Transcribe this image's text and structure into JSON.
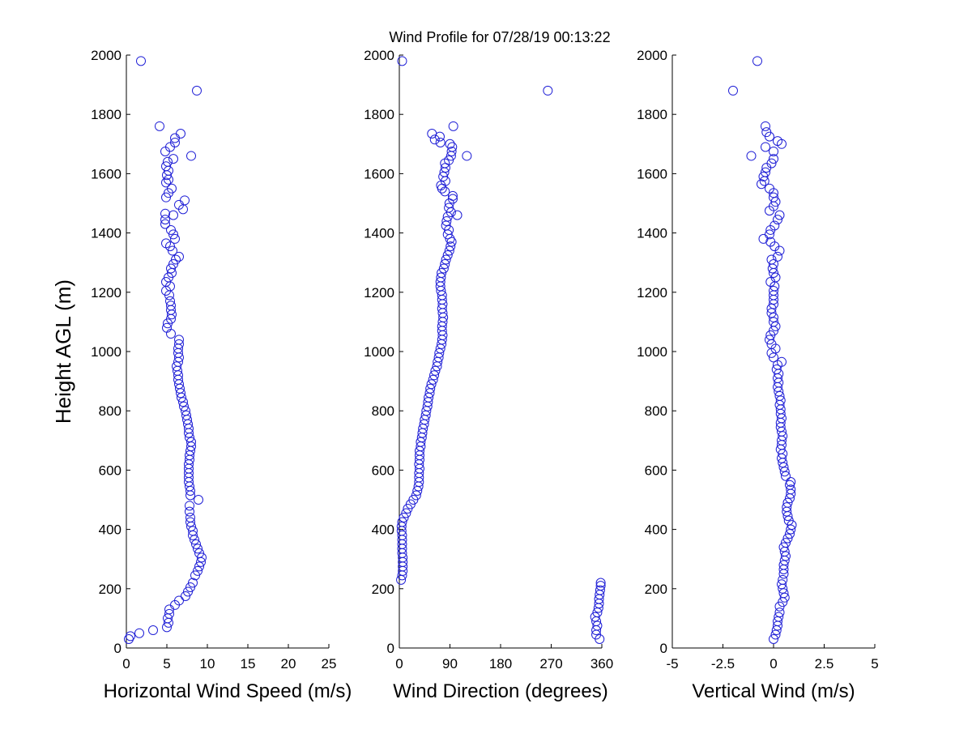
{
  "title": "Wind Profile for  07/28/19 00:13:22",
  "colors": {
    "marker": "#1f1fd6",
    "axis": "#000000",
    "background": "#ffffff"
  },
  "chart_data": [
    {
      "type": "scatter",
      "xlabel": "Horizontal Wind Speed (m/s)",
      "ylabel": "Height AGL (m)",
      "xlim": [
        0,
        25
      ],
      "ylim": [
        0,
        2000
      ],
      "xticks": [
        "0",
        "5",
        "10",
        "15",
        "20",
        "25"
      ],
      "yticks": [
        "0",
        "200",
        "400",
        "600",
        "800",
        "1000",
        "1200",
        "1400",
        "1600",
        "1800",
        "2000"
      ],
      "grid": false,
      "points": [
        [
          0.3,
          30
        ],
        [
          0.5,
          40
        ],
        [
          1.6,
          50
        ],
        [
          3.3,
          60
        ],
        [
          5.0,
          70
        ],
        [
          5.2,
          85
        ],
        [
          5.1,
          100
        ],
        [
          5.3,
          115
        ],
        [
          5.3,
          130
        ],
        [
          6.0,
          145
        ],
        [
          6.5,
          160
        ],
        [
          7.3,
          175
        ],
        [
          7.6,
          190
        ],
        [
          7.9,
          205
        ],
        [
          8.2,
          220
        ],
        [
          8.5,
          245
        ],
        [
          8.8,
          260
        ],
        [
          9.0,
          275
        ],
        [
          9.2,
          290
        ],
        [
          9.3,
          305
        ],
        [
          9.0,
          320
        ],
        [
          8.8,
          335
        ],
        [
          8.6,
          350
        ],
        [
          8.4,
          365
        ],
        [
          8.2,
          380
        ],
        [
          8.2,
          395
        ],
        [
          8.0,
          410
        ],
        [
          7.9,
          425
        ],
        [
          7.9,
          440
        ],
        [
          7.8,
          460
        ],
        [
          7.8,
          480
        ],
        [
          8.9,
          500
        ],
        [
          7.9,
          515
        ],
        [
          7.9,
          530
        ],
        [
          7.8,
          545
        ],
        [
          7.7,
          560
        ],
        [
          7.7,
          575
        ],
        [
          7.7,
          590
        ],
        [
          7.7,
          605
        ],
        [
          7.7,
          620
        ],
        [
          7.8,
          635
        ],
        [
          7.8,
          650
        ],
        [
          7.9,
          665
        ],
        [
          8.0,
          680
        ],
        [
          8.0,
          695
        ],
        [
          7.8,
          710
        ],
        [
          7.7,
          725
        ],
        [
          7.7,
          740
        ],
        [
          7.6,
          755
        ],
        [
          7.5,
          770
        ],
        [
          7.4,
          785
        ],
        [
          7.3,
          800
        ],
        [
          7.1,
          815
        ],
        [
          7.0,
          830
        ],
        [
          6.8,
          845
        ],
        [
          6.7,
          860
        ],
        [
          6.6,
          875
        ],
        [
          6.5,
          890
        ],
        [
          6.4,
          905
        ],
        [
          6.4,
          920
        ],
        [
          6.3,
          935
        ],
        [
          6.2,
          950
        ],
        [
          6.4,
          965
        ],
        [
          6.5,
          980
        ],
        [
          6.4,
          995
        ],
        [
          6.4,
          1010
        ],
        [
          6.5,
          1025
        ],
        [
          6.5,
          1040
        ],
        [
          5.5,
          1060
        ],
        [
          5.0,
          1080
        ],
        [
          5.1,
          1095
        ],
        [
          5.5,
          1110
        ],
        [
          5.6,
          1125
        ],
        [
          5.5,
          1140
        ],
        [
          5.5,
          1155
        ],
        [
          5.4,
          1170
        ],
        [
          5.3,
          1190
        ],
        [
          4.9,
          1205
        ],
        [
          5.4,
          1220
        ],
        [
          4.9,
          1235
        ],
        [
          5.2,
          1250
        ],
        [
          5.6,
          1265
        ],
        [
          5.5,
          1280
        ],
        [
          5.8,
          1295
        ],
        [
          6.1,
          1310
        ],
        [
          6.5,
          1320
        ],
        [
          5.7,
          1340
        ],
        [
          5.4,
          1355
        ],
        [
          4.9,
          1365
        ],
        [
          6.0,
          1380
        ],
        [
          5.8,
          1395
        ],
        [
          5.5,
          1410
        ],
        [
          4.8,
          1430
        ],
        [
          4.8,
          1445
        ],
        [
          5.8,
          1460
        ],
        [
          4.8,
          1465
        ],
        [
          7.0,
          1480
        ],
        [
          6.5,
          1495
        ],
        [
          7.2,
          1510
        ],
        [
          4.9,
          1520
        ],
        [
          5.2,
          1535
        ],
        [
          5.6,
          1550
        ],
        [
          4.9,
          1570
        ],
        [
          5.2,
          1580
        ],
        [
          5.0,
          1595
        ],
        [
          5.2,
          1610
        ],
        [
          4.9,
          1625
        ],
        [
          5.1,
          1640
        ],
        [
          5.8,
          1650
        ],
        [
          8.0,
          1660
        ],
        [
          4.8,
          1675
        ],
        [
          5.4,
          1690
        ],
        [
          6.0,
          1705
        ],
        [
          6.0,
          1720
        ],
        [
          6.7,
          1735
        ],
        [
          4.1,
          1760
        ],
        [
          8.7,
          1880
        ],
        [
          1.8,
          1980
        ]
      ]
    },
    {
      "type": "scatter",
      "xlabel": "Wind Direction (degrees)",
      "xlim": [
        0,
        360
      ],
      "ylim": [
        0,
        2000
      ],
      "xticks": [
        "0",
        "90",
        "180",
        "270",
        "360"
      ],
      "yticks": [
        "0",
        "200",
        "400",
        "600",
        "800",
        "1000",
        "1200",
        "1400",
        "1600",
        "1800",
        "2000"
      ],
      "grid": false,
      "points": [
        [
          356,
          30
        ],
        [
          350,
          45
        ],
        [
          350,
          60
        ],
        [
          352,
          75
        ],
        [
          350,
          90
        ],
        [
          348,
          105
        ],
        [
          352,
          120
        ],
        [
          354,
          135
        ],
        [
          355,
          150
        ],
        [
          355,
          165
        ],
        [
          356,
          180
        ],
        [
          357,
          195
        ],
        [
          358,
          210
        ],
        [
          358,
          220
        ],
        [
          3,
          230
        ],
        [
          5,
          245
        ],
        [
          6,
          260
        ],
        [
          6,
          275
        ],
        [
          6,
          290
        ],
        [
          6,
          305
        ],
        [
          5,
          320
        ],
        [
          5,
          335
        ],
        [
          5,
          350
        ],
        [
          5,
          365
        ],
        [
          5,
          380
        ],
        [
          4,
          395
        ],
        [
          4,
          410
        ],
        [
          5,
          425
        ],
        [
          8,
          440
        ],
        [
          12,
          455
        ],
        [
          15,
          470
        ],
        [
          20,
          485
        ],
        [
          25,
          500
        ],
        [
          30,
          515
        ],
        [
          32,
          530
        ],
        [
          34,
          545
        ],
        [
          35,
          560
        ],
        [
          35,
          575
        ],
        [
          35,
          590
        ],
        [
          36,
          605
        ],
        [
          35,
          620
        ],
        [
          36,
          635
        ],
        [
          36,
          650
        ],
        [
          36,
          665
        ],
        [
          38,
          680
        ],
        [
          38,
          695
        ],
        [
          40,
          710
        ],
        [
          41,
          725
        ],
        [
          42,
          740
        ],
        [
          44,
          755
        ],
        [
          45,
          770
        ],
        [
          47,
          785
        ],
        [
          48,
          800
        ],
        [
          50,
          815
        ],
        [
          51,
          830
        ],
        [
          52,
          845
        ],
        [
          54,
          860
        ],
        [
          55,
          875
        ],
        [
          57,
          890
        ],
        [
          60,
          905
        ],
        [
          62,
          920
        ],
        [
          64,
          935
        ],
        [
          67,
          950
        ],
        [
          68,
          965
        ],
        [
          70,
          980
        ],
        [
          71,
          995
        ],
        [
          73,
          1010
        ],
        [
          75,
          1025
        ],
        [
          76,
          1040
        ],
        [
          77,
          1055
        ],
        [
          76,
          1070
        ],
        [
          76,
          1085
        ],
        [
          77,
          1100
        ],
        [
          78,
          1115
        ],
        [
          77,
          1130
        ],
        [
          76,
          1145
        ],
        [
          77,
          1160
        ],
        [
          76,
          1175
        ],
        [
          76,
          1190
        ],
        [
          74,
          1205
        ],
        [
          73,
          1220
        ],
        [
          73,
          1235
        ],
        [
          74,
          1250
        ],
        [
          75,
          1265
        ],
        [
          79,
          1280
        ],
        [
          81,
          1295
        ],
        [
          83,
          1310
        ],
        [
          86,
          1325
        ],
        [
          89,
          1340
        ],
        [
          91,
          1355
        ],
        [
          93,
          1370
        ],
        [
          90,
          1380
        ],
        [
          86,
          1395
        ],
        [
          88,
          1410
        ],
        [
          83,
          1425
        ],
        [
          84,
          1440
        ],
        [
          86,
          1455
        ],
        [
          92,
          1470
        ],
        [
          103,
          1460
        ],
        [
          88,
          1485
        ],
        [
          89,
          1500
        ],
        [
          95,
          1515
        ],
        [
          95,
          1525
        ],
        [
          81,
          1540
        ],
        [
          76,
          1550
        ],
        [
          74,
          1560
        ],
        [
          82,
          1575
        ],
        [
          78,
          1590
        ],
        [
          80,
          1605
        ],
        [
          82,
          1620
        ],
        [
          81,
          1635
        ],
        [
          88,
          1645
        ],
        [
          92,
          1660
        ],
        [
          120,
          1660
        ],
        [
          93,
          1675
        ],
        [
          94,
          1690
        ],
        [
          90,
          1700
        ],
        [
          73,
          1705
        ],
        [
          63,
          1715
        ],
        [
          72,
          1725
        ],
        [
          58,
          1735
        ],
        [
          96,
          1760
        ],
        [
          264,
          1880
        ],
        [
          5,
          1980
        ]
      ]
    },
    {
      "type": "scatter",
      "xlabel": "Vertical Wind (m/s)",
      "xlim": [
        -5,
        5
      ],
      "ylim": [
        0,
        2000
      ],
      "xticks": [
        "-5",
        "-2.5",
        "0",
        "2.5",
        "5"
      ],
      "yticks": [
        "0",
        "200",
        "400",
        "600",
        "800",
        "1000",
        "1200",
        "1400",
        "1600",
        "1800",
        "2000"
      ],
      "grid": false,
      "points": [
        [
          0.0,
          30
        ],
        [
          0.1,
          45
        ],
        [
          0.15,
          60
        ],
        [
          0.2,
          75
        ],
        [
          0.2,
          90
        ],
        [
          0.25,
          105
        ],
        [
          0.3,
          120
        ],
        [
          0.3,
          140
        ],
        [
          0.45,
          155
        ],
        [
          0.55,
          170
        ],
        [
          0.5,
          185
        ],
        [
          0.45,
          200
        ],
        [
          0.4,
          215
        ],
        [
          0.45,
          230
        ],
        [
          0.5,
          250
        ],
        [
          0.5,
          265
        ],
        [
          0.5,
          280
        ],
        [
          0.55,
          295
        ],
        [
          0.6,
          310
        ],
        [
          0.55,
          325
        ],
        [
          0.5,
          340
        ],
        [
          0.6,
          355
        ],
        [
          0.7,
          370
        ],
        [
          0.8,
          385
        ],
        [
          0.85,
          400
        ],
        [
          0.9,
          415
        ],
        [
          0.75,
          430
        ],
        [
          0.7,
          445
        ],
        [
          0.65,
          460
        ],
        [
          0.65,
          475
        ],
        [
          0.7,
          490
        ],
        [
          0.8,
          505
        ],
        [
          0.85,
          520
        ],
        [
          0.85,
          535
        ],
        [
          0.8,
          550
        ],
        [
          0.85,
          560
        ],
        [
          0.6,
          580
        ],
        [
          0.55,
          595
        ],
        [
          0.5,
          610
        ],
        [
          0.45,
          625
        ],
        [
          0.4,
          640
        ],
        [
          0.45,
          655
        ],
        [
          0.35,
          670
        ],
        [
          0.4,
          685
        ],
        [
          0.4,
          700
        ],
        [
          0.45,
          715
        ],
        [
          0.4,
          730
        ],
        [
          0.35,
          745
        ],
        [
          0.35,
          760
        ],
        [
          0.4,
          775
        ],
        [
          0.35,
          790
        ],
        [
          0.35,
          805
        ],
        [
          0.3,
          820
        ],
        [
          0.35,
          835
        ],
        [
          0.3,
          850
        ],
        [
          0.25,
          865
        ],
        [
          0.2,
          880
        ],
        [
          0.25,
          895
        ],
        [
          0.2,
          910
        ],
        [
          0.25,
          925
        ],
        [
          0.15,
          940
        ],
        [
          0.2,
          955
        ],
        [
          0.4,
          965
        ],
        [
          0.0,
          980
        ],
        [
          -0.1,
          995
        ],
        [
          0.1,
          1010
        ],
        [
          -0.1,
          1025
        ],
        [
          -0.2,
          1040
        ],
        [
          -0.15,
          1055
        ],
        [
          0.0,
          1070
        ],
        [
          0.1,
          1085
        ],
        [
          0.0,
          1100
        ],
        [
          0.0,
          1115
        ],
        [
          -0.1,
          1130
        ],
        [
          -0.1,
          1145
        ],
        [
          0.0,
          1160
        ],
        [
          0.0,
          1175
        ],
        [
          0.0,
          1190
        ],
        [
          0.0,
          1205
        ],
        [
          0.05,
          1220
        ],
        [
          -0.15,
          1235
        ],
        [
          0.1,
          1250
        ],
        [
          0.0,
          1265
        ],
        [
          -0.05,
          1280
        ],
        [
          0.0,
          1295
        ],
        [
          -0.1,
          1310
        ],
        [
          0.2,
          1320
        ],
        [
          0.3,
          1340
        ],
        [
          0.05,
          1355
        ],
        [
          -0.15,
          1370
        ],
        [
          -0.5,
          1380
        ],
        [
          -0.2,
          1395
        ],
        [
          -0.15,
          1410
        ],
        [
          0.05,
          1425
        ],
        [
          0.2,
          1445
        ],
        [
          0.3,
          1460
        ],
        [
          -0.2,
          1475
        ],
        [
          0.0,
          1490
        ],
        [
          0.1,
          1505
        ],
        [
          0.0,
          1520
        ],
        [
          0.0,
          1535
        ],
        [
          -0.2,
          1550
        ],
        [
          -0.6,
          1565
        ],
        [
          -0.45,
          1575
        ],
        [
          -0.5,
          1590
        ],
        [
          -0.4,
          1605
        ],
        [
          -0.35,
          1620
        ],
        [
          -0.1,
          1635
        ],
        [
          0.0,
          1650
        ],
        [
          -1.1,
          1660
        ],
        [
          0.0,
          1675
        ],
        [
          -0.4,
          1690
        ],
        [
          0.4,
          1700
        ],
        [
          0.2,
          1710
        ],
        [
          -0.2,
          1725
        ],
        [
          -0.35,
          1740
        ],
        [
          -0.4,
          1760
        ],
        [
          -2.0,
          1880
        ],
        [
          -0.8,
          1980
        ]
      ]
    }
  ]
}
